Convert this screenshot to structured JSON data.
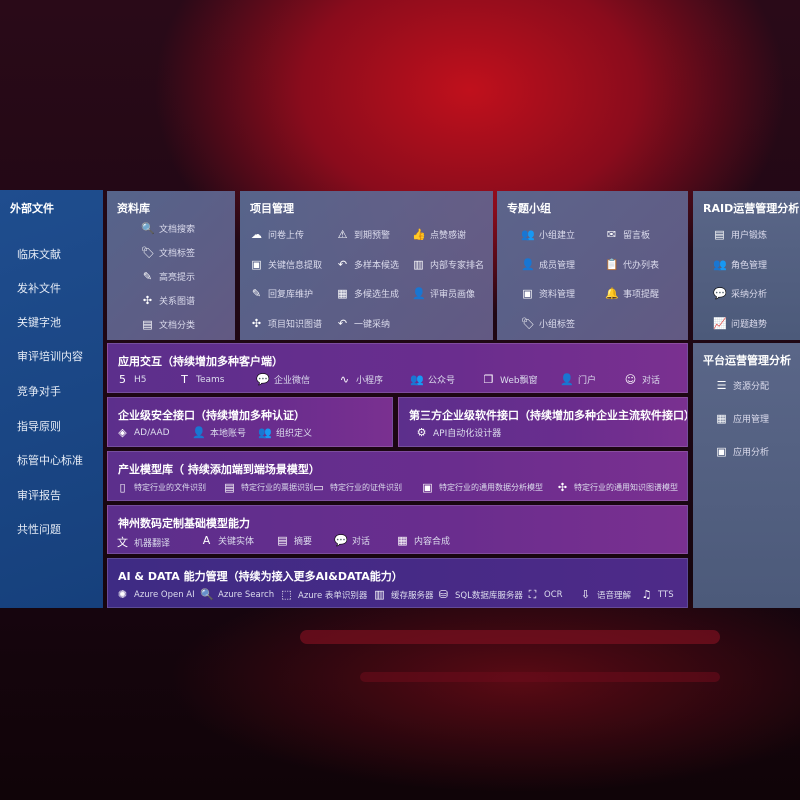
{
  "sidebar": {
    "title": "外部文件",
    "items": [
      "临床文献",
      "发补文件",
      "关键字池",
      "审评培训内容",
      "竞争对手",
      "指导原则",
      "标管中心标准",
      "审评报告",
      "共性问题"
    ]
  },
  "library": {
    "title": "资料库",
    "items": [
      {
        "label": "文档搜索",
        "icon": "document-search-icon",
        "g": "🔍"
      },
      {
        "label": "文档标签",
        "icon": "tag-icon",
        "g": "🏷"
      },
      {
        "label": "高亮提示",
        "icon": "pen-icon",
        "g": "✎"
      },
      {
        "label": "关系图谱",
        "icon": "graph-icon",
        "g": "✣"
      },
      {
        "label": "文档分类",
        "icon": "document-category-icon",
        "g": "▤"
      }
    ]
  },
  "project": {
    "title": "项目管理",
    "items": [
      {
        "label": "问卷上传",
        "icon": "cloud-upload-icon",
        "g": "☁"
      },
      {
        "label": "到期预警",
        "icon": "alarm-icon",
        "g": "⚠"
      },
      {
        "label": "点赞感谢",
        "icon": "thumbs-up-icon",
        "g": "👍"
      },
      {
        "label": "关键信息提取",
        "icon": "window-icon",
        "g": "▣"
      },
      {
        "label": "多样本候选",
        "icon": "reply-icon",
        "g": "↶"
      },
      {
        "label": "内部专家排名",
        "icon": "ranking-icon",
        "g": "▥"
      },
      {
        "label": "回复库维护",
        "icon": "edit-icon",
        "g": "✎"
      },
      {
        "label": "多候选生成",
        "icon": "puzzle-icon",
        "g": "▦"
      },
      {
        "label": "评审员画像",
        "icon": "user-icon",
        "g": "👤"
      },
      {
        "label": "项目知识图谱",
        "icon": "graph-icon",
        "g": "✣"
      },
      {
        "label": "一键采纳",
        "icon": "reply-icon",
        "g": "↶"
      }
    ]
  },
  "group": {
    "title": "专题小组",
    "items": [
      {
        "label": "小组建立",
        "icon": "group-icon",
        "g": "👥"
      },
      {
        "label": "留言板",
        "icon": "bbs-icon",
        "g": "✉"
      },
      {
        "label": "成员管理",
        "icon": "member-icon",
        "g": "👤"
      },
      {
        "label": "代办列表",
        "icon": "clipboard-icon",
        "g": "📋"
      },
      {
        "label": "资料管理",
        "icon": "folder-icon",
        "g": "▣"
      },
      {
        "label": "事项提醒",
        "icon": "bell-icon",
        "g": "🔔"
      },
      {
        "label": "小组标签",
        "icon": "tag-icon",
        "g": "🏷"
      }
    ]
  },
  "raid": {
    "title": "RAID运营管理分析",
    "items": [
      {
        "label": "用户锻炼",
        "icon": "id-card-icon",
        "g": "▤"
      },
      {
        "label": "角色管理",
        "icon": "users-icon",
        "g": "👥"
      },
      {
        "label": "采纳分析",
        "icon": "qa-icon",
        "g": "💬"
      },
      {
        "label": "问题趋势",
        "icon": "trend-icon",
        "g": "📈"
      }
    ]
  },
  "platform": {
    "title": "平台运营管理分析",
    "items": [
      {
        "label": "资源分配",
        "icon": "checklist-icon",
        "g": "☰"
      },
      {
        "label": "应用管理",
        "icon": "apps-icon",
        "g": "▦"
      },
      {
        "label": "应用分析",
        "icon": "analysis-icon",
        "g": "▣"
      }
    ]
  },
  "app": {
    "title": "应用交互（持续增加多种客户端）",
    "items": [
      {
        "label": "H5",
        "icon": "html5-icon",
        "g": "5"
      },
      {
        "label": "Teams",
        "icon": "teams-icon",
        "g": "T"
      },
      {
        "label": "企业微信",
        "icon": "wecom-icon",
        "g": "💬"
      },
      {
        "label": "小程序",
        "icon": "miniprogram-icon",
        "g": "∿"
      },
      {
        "label": "公众号",
        "icon": "official-account-icon",
        "g": "👥"
      },
      {
        "label": "Web飘窗",
        "icon": "web-window-icon",
        "g": "❐"
      },
      {
        "label": "门户",
        "icon": "portal-icon",
        "g": "👤"
      },
      {
        "label": "对话",
        "icon": "chat-icon",
        "g": "☺"
      }
    ]
  },
  "security": {
    "title": "企业级安全接口（持续增加多种认证）",
    "items": [
      {
        "label": "AD/AAD",
        "icon": "ad-icon",
        "g": "◈"
      },
      {
        "label": "本地账号",
        "icon": "local-account-icon",
        "g": "👤"
      },
      {
        "label": "组织定义",
        "icon": "organization-icon",
        "g": "👥"
      }
    ]
  },
  "thirdparty": {
    "title": "第三方企业级软件接口（持续增加多种企业主流软件接口）",
    "items": [
      {
        "label": "API自动化设计器",
        "icon": "gear-icon",
        "g": "⚙"
      }
    ]
  },
  "industry": {
    "title": "产业模型库（ 持续添加端到端场景模型）",
    "items": [
      {
        "label": "特定行业的文件识别",
        "icon": "file-icon",
        "g": "▯"
      },
      {
        "label": "特定行业的票据识别",
        "icon": "receipt-icon",
        "g": "▤"
      },
      {
        "label": "特定行业的证件识别",
        "icon": "id-card-icon",
        "g": "▭"
      },
      {
        "label": "特定行业的通用数据分析模型",
        "icon": "chart-icon",
        "g": "▣"
      },
      {
        "label": "特定行业的通用知识图谱模型",
        "icon": "graph-icon",
        "g": "✣"
      }
    ]
  },
  "base": {
    "title": "神州数码定制基础模型能力",
    "items": [
      {
        "label": "机器翻译",
        "icon": "translate-icon",
        "g": "文"
      },
      {
        "label": "关键实体",
        "icon": "entity-icon",
        "g": "A"
      },
      {
        "label": "摘要",
        "icon": "summary-icon",
        "g": "▤"
      },
      {
        "label": "对话",
        "icon": "chat-icon",
        "g": "💬"
      },
      {
        "label": "内容合成",
        "icon": "puzzle-icon",
        "g": "▦"
      }
    ]
  },
  "aidata": {
    "title": "AI & DATA 能力管理（持续为接入更多AI&DATA能力）",
    "items": [
      {
        "label": "Azure Open AI",
        "icon": "openai-icon",
        "g": "✺"
      },
      {
        "label": "Azure Search",
        "icon": "search-doc-icon",
        "g": "🔍"
      },
      {
        "label": "Azure 表单识别器",
        "icon": "form-icon",
        "g": "⬚"
      },
      {
        "label": "缓存服务器",
        "icon": "cache-server-icon",
        "g": "▥"
      },
      {
        "label": "SQL数据库服务器",
        "icon": "database-icon",
        "g": "⛁"
      },
      {
        "label": "OCR",
        "icon": "ocr-icon",
        "g": "⛶"
      },
      {
        "label": "语音理解",
        "icon": "speech-icon",
        "g": "⇩"
      },
      {
        "label": "TTS",
        "icon": "tts-icon",
        "g": "♫"
      }
    ]
  }
}
